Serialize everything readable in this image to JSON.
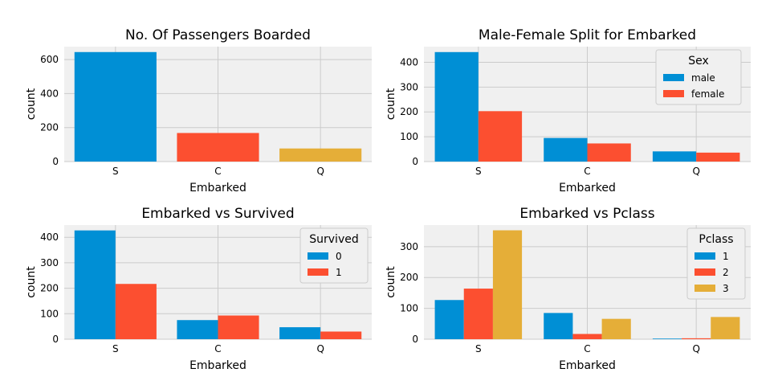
{
  "palette": [
    "#008fd5",
    "#fc4f30",
    "#e5ae38"
  ],
  "chart_data": [
    {
      "type": "bar",
      "title": "No. Of Passengers Boarded",
      "xlabel": "Embarked",
      "ylabel": "count",
      "categories": [
        "S",
        "C",
        "Q"
      ],
      "colors_by_category": [
        "#008fd5",
        "#fc4f30",
        "#e5ae38"
      ],
      "series": [
        {
          "values": [
            644,
            168,
            77
          ]
        }
      ],
      "ylim": [
        0,
        676
      ],
      "yticks": [
        0,
        200,
        400,
        600
      ],
      "grid": true
    },
    {
      "type": "bar",
      "title": "Male-Female Split for Embarked",
      "xlabel": "Embarked",
      "ylabel": "count",
      "categories": [
        "S",
        "C",
        "Q"
      ],
      "legend": {
        "title": "Sex",
        "position": "top-right"
      },
      "series": [
        {
          "name": "male",
          "color": "#008fd5",
          "values": [
            441,
            95,
            41
          ]
        },
        {
          "name": "female",
          "color": "#fc4f30",
          "values": [
            203,
            73,
            36
          ]
        }
      ],
      "ylim": [
        0,
        463
      ],
      "yticks": [
        0,
        100,
        200,
        300,
        400
      ],
      "grid": true
    },
    {
      "type": "bar",
      "title": "Embarked vs Survived",
      "xlabel": "Embarked",
      "ylabel": "count",
      "categories": [
        "S",
        "C",
        "Q"
      ],
      "legend": {
        "title": "Survived",
        "position": "top-right"
      },
      "series": [
        {
          "name": "0",
          "color": "#008fd5",
          "values": [
            427,
            75,
            47
          ]
        },
        {
          "name": "1",
          "color": "#fc4f30",
          "values": [
            217,
            93,
            30
          ]
        }
      ],
      "ylim": [
        0,
        448
      ],
      "yticks": [
        0,
        100,
        200,
        300,
        400
      ],
      "grid": true
    },
    {
      "type": "bar",
      "title": "Embarked vs Pclass",
      "xlabel": "Embarked",
      "ylabel": "count",
      "categories": [
        "S",
        "C",
        "Q"
      ],
      "legend": {
        "title": "Pclass",
        "position": "top-right"
      },
      "series": [
        {
          "name": "1",
          "color": "#008fd5",
          "values": [
            127,
            85,
            2
          ]
        },
        {
          "name": "2",
          "color": "#fc4f30",
          "values": [
            164,
            17,
            3
          ]
        },
        {
          "name": "3",
          "color": "#e5ae38",
          "values": [
            353,
            66,
            72
          ]
        }
      ],
      "ylim": [
        0,
        370
      ],
      "yticks": [
        0,
        100,
        200,
        300
      ],
      "grid": true
    }
  ]
}
